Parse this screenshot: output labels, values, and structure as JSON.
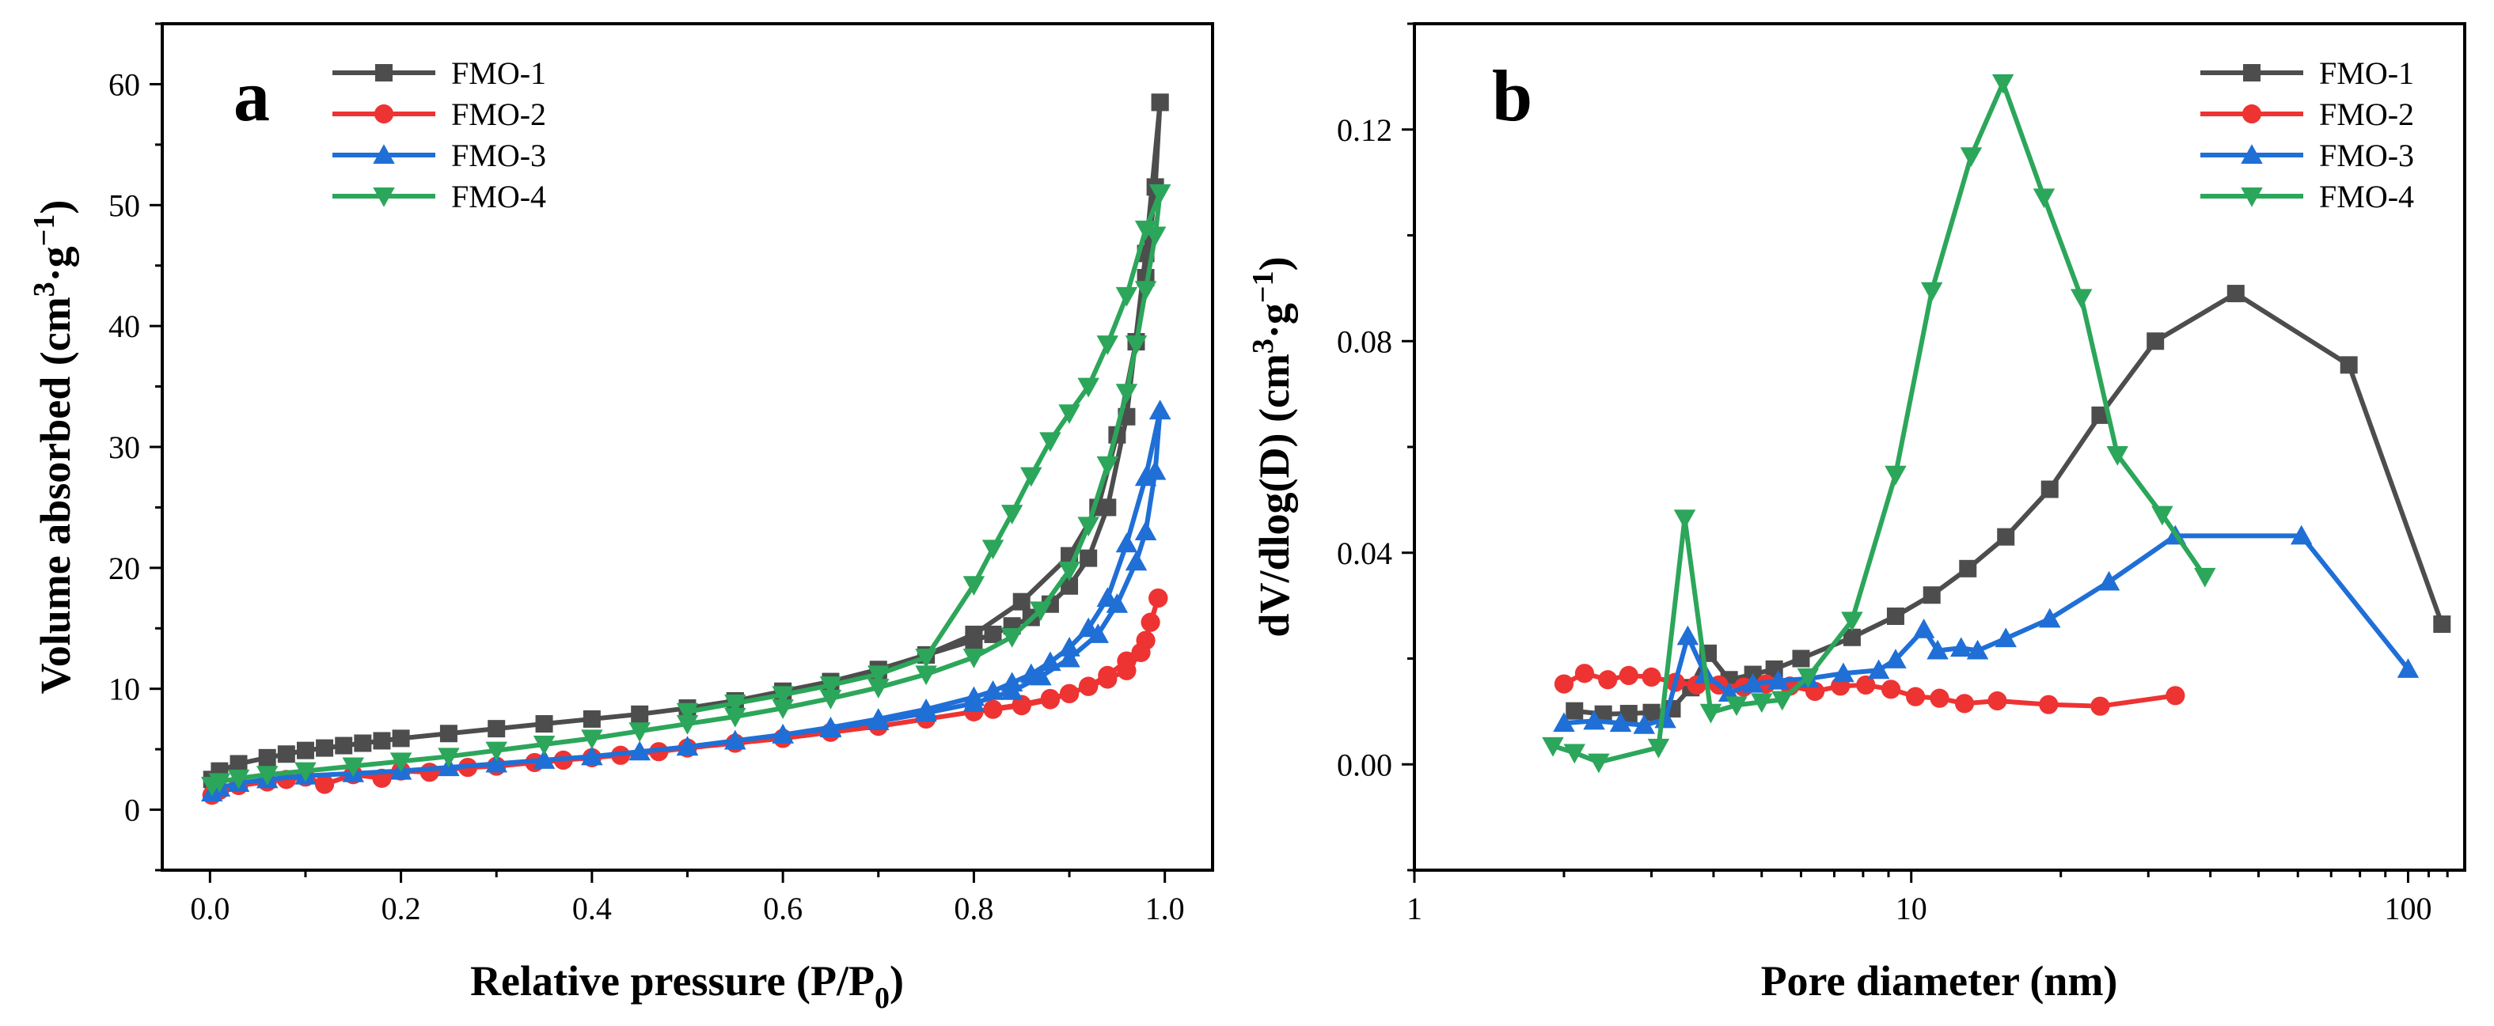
{
  "colors": {
    "FMO-1": "#4d4d4d",
    "FMO-2": "#ee3333",
    "FMO-3": "#1f6fd6",
    "FMO-4": "#2ca65a"
  },
  "chart_data": [
    {
      "panel_label": "a",
      "type": "line",
      "xlabel": "Relative pressure (P/P",
      "xlabel_sub": "0",
      "xlabel_end": ")",
      "ylabel": "Volume absorbed (cm",
      "ylabel_sup1": "3",
      "ylabel_mid": "·g",
      "ylabel_sup2": "−1",
      "ylabel_end": ")",
      "xlim": [
        -0.05,
        1.05
      ],
      "ylim": [
        -5,
        65
      ],
      "x_ticks": [
        0.0,
        0.2,
        0.4,
        0.6,
        0.8,
        1.0
      ],
      "x_tick_labels": [
        "0.0",
        "0.2",
        "0.4",
        "0.6",
        "0.8",
        "1.0"
      ],
      "y_ticks": [
        0,
        10,
        20,
        30,
        40,
        50,
        60
      ],
      "y_tick_labels": [
        "0",
        "10",
        "20",
        "30",
        "40",
        "50",
        "60"
      ],
      "legend_position": "top-left",
      "series": [
        {
          "name": "FMO-1",
          "marker": "square",
          "adsorption": {
            "x": [
              0.002,
              0.01,
              0.03,
              0.06,
              0.08,
              0.1,
              0.12,
              0.14,
              0.16,
              0.18,
              0.2,
              0.25,
              0.3,
              0.35,
              0.4,
              0.45,
              0.5,
              0.55,
              0.6,
              0.65,
              0.7,
              0.75,
              0.8,
              0.85,
              0.9,
              0.93,
              0.95,
              0.97,
              0.98,
              0.99,
              0.995
            ],
            "y": [
              2.5,
              3.2,
              3.8,
              4.3,
              4.6,
              4.9,
              5.1,
              5.3,
              5.5,
              5.7,
              5.9,
              6.3,
              6.7,
              7.1,
              7.5,
              7.9,
              8.4,
              9.0,
              9.7,
              10.4,
              11.4,
              12.8,
              14.5,
              17.2,
              21.0,
              25.0,
              31.0,
              38.7,
              44.0,
              51.5,
              58.5
            ]
          },
          "desorption": {
            "x": [
              0.995,
              0.98,
              0.96,
              0.94,
              0.92,
              0.9,
              0.88,
              0.86,
              0.84,
              0.82,
              0.8,
              0.75,
              0.7,
              0.65,
              0.6,
              0.55,
              0.5
            ],
            "y": [
              58.5,
              46.0,
              32.5,
              25.0,
              20.8,
              18.5,
              17.0,
              15.9,
              15.2,
              14.5,
              14.0,
              12.8,
              11.6,
              10.6,
              9.8,
              9.0,
              8.4
            ]
          }
        },
        {
          "name": "FMO-2",
          "marker": "circle",
          "adsorption": {
            "x": [
              0.002,
              0.01,
              0.03,
              0.06,
              0.08,
              0.1,
              0.12,
              0.15,
              0.18,
              0.2,
              0.23,
              0.27,
              0.3,
              0.34,
              0.37,
              0.4,
              0.43,
              0.47,
              0.5,
              0.55,
              0.6,
              0.65,
              0.7,
              0.75,
              0.8,
              0.85,
              0.88,
              0.9,
              0.92,
              0.94,
              0.96,
              0.975,
              0.985,
              0.993
            ],
            "y": [
              1.2,
              1.6,
              2.0,
              2.3,
              2.5,
              2.7,
              2.1,
              2.9,
              2.6,
              3.2,
              3.1,
              3.5,
              3.6,
              3.9,
              4.1,
              4.3,
              4.5,
              4.8,
              5.1,
              5.5,
              5.9,
              6.4,
              6.9,
              7.5,
              8.1,
              8.7,
              9.2,
              9.6,
              10.2,
              10.8,
              11.5,
              13.0,
              15.5,
              17.5
            ]
          },
          "desorption": {
            "x": [
              0.993,
              0.98,
              0.96,
              0.94,
              0.92,
              0.9,
              0.88,
              0.85,
              0.82,
              0.8
            ],
            "y": [
              17.5,
              14.0,
              12.3,
              11.1,
              10.2,
              9.6,
              9.1,
              8.6,
              8.3,
              8.1
            ]
          }
        },
        {
          "name": "FMO-3",
          "marker": "triangle-up",
          "adsorption": {
            "x": [
              0.002,
              0.01,
              0.03,
              0.06,
              0.1,
              0.15,
              0.2,
              0.25,
              0.3,
              0.35,
              0.4,
              0.45,
              0.5,
              0.55,
              0.6,
              0.65,
              0.7,
              0.75,
              0.8,
              0.84,
              0.87,
              0.9,
              0.93,
              0.95,
              0.97,
              0.98,
              0.99,
              0.995
            ],
            "y": [
              1.4,
              1.8,
              2.2,
              2.5,
              2.8,
              3.0,
              3.2,
              3.5,
              3.8,
              4.1,
              4.4,
              4.8,
              5.2,
              5.7,
              6.2,
              6.7,
              7.3,
              8.0,
              8.8,
              9.8,
              11.0,
              12.5,
              14.5,
              17.0,
              20.5,
              23.0,
              28.0,
              33.0
            ]
          },
          "desorption": {
            "x": [
              0.995,
              0.98,
              0.96,
              0.94,
              0.92,
              0.9,
              0.88,
              0.86,
              0.84,
              0.82,
              0.8,
              0.75,
              0.7,
              0.65,
              0.6,
              0.55,
              0.5
            ],
            "y": [
              33.0,
              27.5,
              22.0,
              17.5,
              15.0,
              13.4,
              12.2,
              11.2,
              10.5,
              9.8,
              9.3,
              8.3,
              7.5,
              6.8,
              6.2,
              5.7,
              5.2
            ]
          }
        },
        {
          "name": "FMO-4",
          "marker": "triangle-down",
          "adsorption": {
            "x": [
              0.002,
              0.01,
              0.03,
              0.06,
              0.1,
              0.15,
              0.2,
              0.25,
              0.3,
              0.35,
              0.4,
              0.45,
              0.5,
              0.55,
              0.6,
              0.65,
              0.7,
              0.75,
              0.8,
              0.84,
              0.87,
              0.9,
              0.92,
              0.94,
              0.96,
              0.97,
              0.98,
              0.99,
              0.995
            ],
            "y": [
              2.0,
              2.3,
              2.6,
              2.9,
              3.2,
              3.6,
              4.0,
              4.4,
              4.9,
              5.4,
              5.9,
              6.5,
              7.1,
              7.7,
              8.4,
              9.2,
              10.1,
              11.2,
              12.6,
              14.3,
              16.5,
              19.8,
              23.5,
              28.5,
              34.5,
              38.5,
              43.0,
              47.5,
              51.0
            ]
          },
          "desorption": {
            "x": [
              0.995,
              0.98,
              0.96,
              0.94,
              0.92,
              0.9,
              0.88,
              0.86,
              0.84,
              0.82,
              0.8,
              0.75,
              0.7,
              0.65,
              0.6,
              0.55,
              0.5
            ],
            "y": [
              51.0,
              48.0,
              42.5,
              38.5,
              35.0,
              32.8,
              30.5,
              27.6,
              24.5,
              21.6,
              18.6,
              12.6,
              11.2,
              10.3,
              9.5,
              8.8,
              8.1
            ]
          }
        }
      ]
    },
    {
      "panel_label": "b",
      "type": "line",
      "xscale": "log",
      "xlabel": "Pore diameter (nm)",
      "ylabel": "dV/dlog(D) (cm",
      "ylabel_sup1": "3",
      "ylabel_mid": "·g",
      "ylabel_sup2": "−1",
      "ylabel_end": ")",
      "xlim": [
        1,
        130
      ],
      "ylim": [
        -0.02,
        0.14
      ],
      "x_ticks": [
        1,
        10,
        100
      ],
      "x_tick_labels": [
        "1",
        "10",
        "100"
      ],
      "y_ticks": [
        0.0,
        0.04,
        0.08,
        0.12
      ],
      "y_tick_labels": [
        "0.00",
        "0.04",
        "0.08",
        "0.12"
      ],
      "legend_position": "top-right",
      "series": [
        {
          "name": "FMO-1",
          "marker": "square",
          "x": [
            2.1,
            2.4,
            2.7,
            3.0,
            3.3,
            3.6,
            3.9,
            4.3,
            4.8,
            5.3,
            6.0,
            7.6,
            9.3,
            11.0,
            13.0,
            15.5,
            19.0,
            24.0,
            31.0,
            45.0,
            76.0,
            117.0
          ],
          "y": [
            0.0101,
            0.0095,
            0.0096,
            0.0098,
            0.0105,
            0.0145,
            0.021,
            0.016,
            0.017,
            0.018,
            0.02,
            0.024,
            0.028,
            0.032,
            0.037,
            0.043,
            0.052,
            0.066,
            0.08,
            0.089,
            0.0755,
            0.0265
          ]
        },
        {
          "name": "FMO-2",
          "marker": "circle",
          "x": [
            2.0,
            2.2,
            2.45,
            2.7,
            3.0,
            3.35,
            3.7,
            4.1,
            4.6,
            5.1,
            5.7,
            6.4,
            7.2,
            8.1,
            9.1,
            10.2,
            11.4,
            12.8,
            14.9,
            18.9,
            24.0,
            34.0
          ],
          "y": [
            0.0152,
            0.0172,
            0.016,
            0.0168,
            0.0165,
            0.0155,
            0.015,
            0.015,
            0.0146,
            0.0152,
            0.0148,
            0.0138,
            0.0148,
            0.015,
            0.0142,
            0.0128,
            0.0125,
            0.0115,
            0.012,
            0.0113,
            0.011,
            0.013
          ]
        },
        {
          "name": "FMO-3",
          "marker": "triangle-up",
          "x": [
            2.0,
            2.3,
            2.6,
            2.9,
            3.2,
            3.55,
            3.85,
            4.3,
            4.8,
            5.4,
            6.2,
            7.3,
            8.6,
            9.3,
            10.6,
            11.3,
            12.6,
            13.6,
            15.5,
            19.0,
            25.0,
            34.0,
            61.0,
            100.0
          ],
          "y": [
            0.0078,
            0.0082,
            0.0078,
            0.0074,
            0.0085,
            0.0242,
            0.017,
            0.0135,
            0.0152,
            0.0158,
            0.0162,
            0.0172,
            0.0178,
            0.0198,
            0.0255,
            0.0215,
            0.022,
            0.0215,
            0.0238,
            0.0275,
            0.0345,
            0.0432,
            0.0432,
            0.018
          ]
        },
        {
          "name": "FMO-4",
          "marker": "triangle-down",
          "x": [
            1.9,
            2.1,
            2.35,
            3.1,
            3.5,
            3.95,
            4.45,
            5.0,
            5.5,
            6.2,
            7.6,
            9.3,
            11.0,
            13.2,
            15.3,
            18.5,
            22.0,
            26.0,
            32.0,
            39.0
          ],
          "y": [
            0.0035,
            0.0022,
            0.0004,
            0.0032,
            0.0465,
            0.0098,
            0.0112,
            0.0118,
            0.0122,
            0.0165,
            0.0272,
            0.0548,
            0.0895,
            0.115,
            0.1288,
            0.1072,
            0.0882,
            0.0585,
            0.0472,
            0.0355
          ]
        }
      ]
    }
  ]
}
